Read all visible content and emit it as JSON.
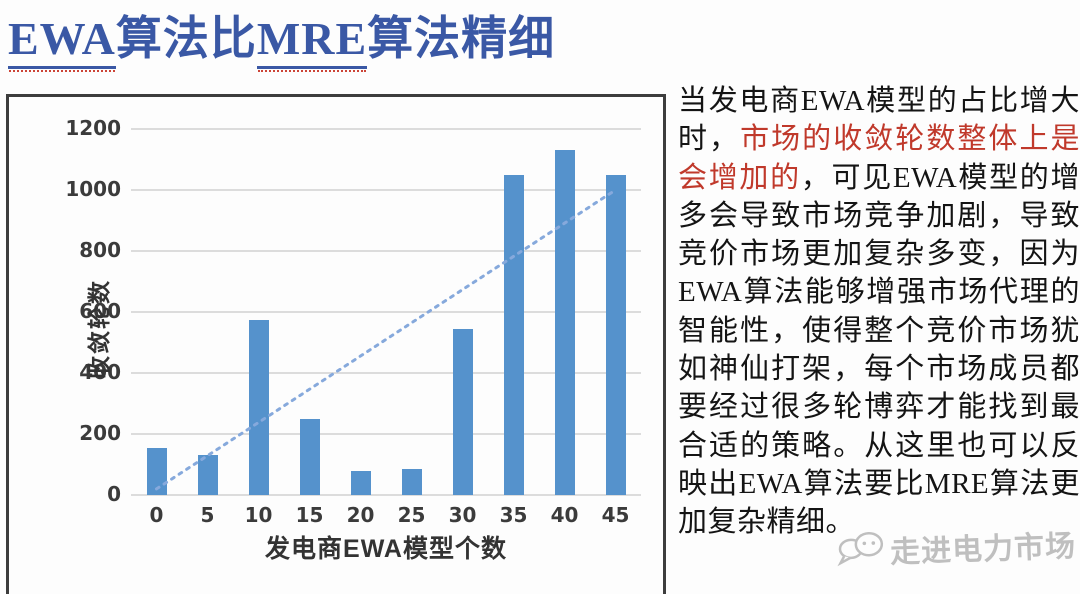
{
  "title": {
    "part1": "EWA",
    "part2": "算法比",
    "part3": "MRE",
    "part4": "算法精细"
  },
  "chart_data": {
    "type": "bar",
    "categories": [
      "0",
      "5",
      "10",
      "15",
      "20",
      "25",
      "30",
      "35",
      "40",
      "45"
    ],
    "values": [
      155,
      130,
      575,
      250,
      80,
      85,
      545,
      1050,
      1130,
      1050
    ],
    "title": "",
    "xlabel": "发电商EWA模型个数",
    "ylabel": "收敛轮数",
    "ylim": [
      0,
      1200
    ],
    "yticks": [
      0,
      200,
      400,
      600,
      800,
      1000,
      1200
    ],
    "grid": true,
    "legend": "none",
    "bar_color": "#5592CC",
    "gridline_color": "#DCDCDC",
    "trendline": {
      "style": "dotted",
      "color": "#86A9DC",
      "start_category_index": 0,
      "start_value": 20,
      "end_category_index": 9,
      "end_value": 1000
    }
  },
  "paragraph": {
    "part1": "当发电商EWA模型的占比增大时，",
    "highlight": "市场的收敛轮数整体上是会增加的",
    "part2": "，可见EWA模型的增多会导致市场竞争加剧，导致竞价市场更加复杂多变，因为EWA算法能够增强市场代理的智能性，使得整个竞价市场犹如神仙打架，每个市场成员都要经过很多轮博弈才能找到最合适的策略。从这里也可以反映出EWA算法要比MRE算法更加复杂精细。",
    "highlight_color": "#C0392B"
  },
  "watermark": {
    "text": "走进电力市场"
  },
  "colors": {
    "title_blue": "#3A58A5",
    "panel_border": "#3d3d3d"
  }
}
